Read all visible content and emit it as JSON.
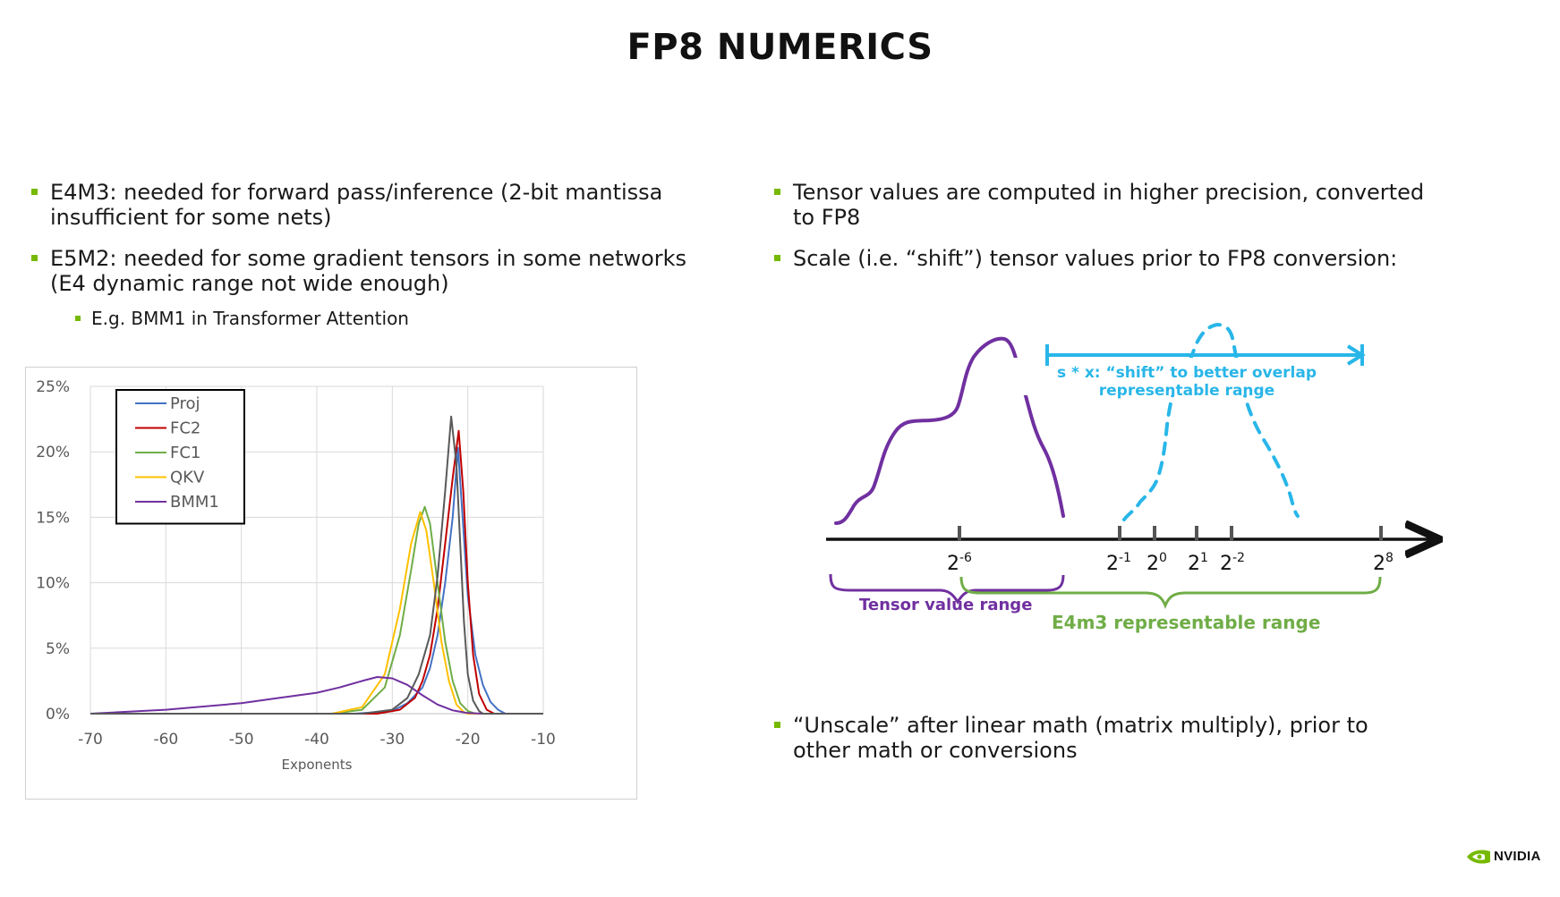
{
  "title": "FP8 NUMERICS",
  "left_bullets": [
    "E4M3: needed for forward pass/inference (2-bit mantissa insufficient for some nets)",
    "E5M2: needed for some gradient tensors in some networks (E4 dynamic range not wide enough)"
  ],
  "left_sub_bullet": "E.g. BMM1 in Transformer Attention",
  "right_bullets": [
    "Tensor values are computed in higher precision, converted to FP8",
    "Scale (i.e. “shift”) tensor values prior to FP8 conversion:"
  ],
  "right_bullet_bottom": "“Unscale” after linear math (matrix multiply), prior to other math or conversions",
  "chart_data": {
    "type": "line",
    "title": "",
    "xlabel": "Exponents",
    "ylabel": "",
    "xlim": [
      -70,
      -10
    ],
    "ylim": [
      0,
      25
    ],
    "x_ticks": [
      "-70",
      "-60",
      "-50",
      "-40",
      "-30",
      "-20",
      "-10"
    ],
    "y_ticks": [
      "0%",
      "5%",
      "10%",
      "15%",
      "20%",
      "25%"
    ],
    "grid": true,
    "legend_position": "top-left",
    "series": [
      {
        "name": "Proj",
        "color": "#4472c4",
        "points": [
          [
            -70,
            0
          ],
          [
            -35,
            0
          ],
          [
            -30,
            0.2
          ],
          [
            -28,
            0.8
          ],
          [
            -26,
            2
          ],
          [
            -25,
            3.5
          ],
          [
            -24,
            6
          ],
          [
            -23,
            10
          ],
          [
            -22,
            15
          ],
          [
            -21.3,
            20.3
          ],
          [
            -20.8,
            16
          ],
          [
            -20,
            9
          ],
          [
            -19,
            4.5
          ],
          [
            -18,
            2.2
          ],
          [
            -17,
            0.9
          ],
          [
            -16,
            0.3
          ],
          [
            -15,
            0
          ],
          [
            -10,
            0
          ]
        ]
      },
      {
        "name": "FC2",
        "color": "#c00000",
        "points": [
          [
            -70,
            0
          ],
          [
            -32,
            0
          ],
          [
            -29,
            0.3
          ],
          [
            -27,
            1.2
          ],
          [
            -26,
            2.5
          ],
          [
            -25,
            4.5
          ],
          [
            -24,
            8
          ],
          [
            -23,
            13
          ],
          [
            -22,
            18
          ],
          [
            -21.2,
            21.6
          ],
          [
            -20.6,
            17
          ],
          [
            -20,
            10
          ],
          [
            -19.3,
            4.5
          ],
          [
            -18.5,
            1.5
          ],
          [
            -17.5,
            0.3
          ],
          [
            -16.5,
            0
          ],
          [
            -10,
            0
          ]
        ]
      },
      {
        "name": "FC1",
        "color": "#70ad47",
        "points": [
          [
            -70,
            0
          ],
          [
            -38,
            0
          ],
          [
            -34,
            0.3
          ],
          [
            -31,
            2
          ],
          [
            -29,
            6
          ],
          [
            -27.5,
            11
          ],
          [
            -26.5,
            14.5
          ],
          [
            -25.7,
            15.8
          ],
          [
            -25,
            14.5
          ],
          [
            -24,
            10
          ],
          [
            -23,
            5.5
          ],
          [
            -22,
            2.5
          ],
          [
            -21,
            0.8
          ],
          [
            -20,
            0.2
          ],
          [
            -19,
            0
          ],
          [
            -10,
            0
          ]
        ]
      },
      {
        "name": "QKV",
        "color": "#ffc000",
        "points": [
          [
            -70,
            0
          ],
          [
            -38,
            0
          ],
          [
            -34,
            0.5
          ],
          [
            -31,
            3
          ],
          [
            -29,
            8
          ],
          [
            -27.5,
            13
          ],
          [
            -26.3,
            15.4
          ],
          [
            -25.5,
            14
          ],
          [
            -24.5,
            10
          ],
          [
            -23.5,
            5.5
          ],
          [
            -22.5,
            2.5
          ],
          [
            -21.5,
            0.7
          ],
          [
            -20.5,
            0.1
          ],
          [
            -20,
            0
          ],
          [
            -10,
            0
          ]
        ]
      },
      {
        "name": "BMM1",
        "color": "#7030a0",
        "points": [
          [
            -70,
            0
          ],
          [
            -60,
            0.3
          ],
          [
            -50,
            0.8
          ],
          [
            -45,
            1.2
          ],
          [
            -40,
            1.6
          ],
          [
            -37,
            2.0
          ],
          [
            -34,
            2.5
          ],
          [
            -32,
            2.8
          ],
          [
            -30,
            2.7
          ],
          [
            -28,
            2.2
          ],
          [
            -26,
            1.4
          ],
          [
            -24,
            0.7
          ],
          [
            -22,
            0.25
          ],
          [
            -20,
            0.05
          ],
          [
            -18,
            0
          ],
          [
            -10,
            0
          ]
        ]
      },
      {
        "name": "",
        "color": "#595959",
        "points": [
          [
            -70,
            0
          ],
          [
            -34,
            0
          ],
          [
            -30,
            0.3
          ],
          [
            -28,
            1.2
          ],
          [
            -26.5,
            3
          ],
          [
            -25,
            6
          ],
          [
            -24,
            10.5
          ],
          [
            -23,
            17
          ],
          [
            -22.2,
            22.7
          ],
          [
            -21.5,
            19
          ],
          [
            -21,
            13
          ],
          [
            -20.5,
            7
          ],
          [
            -20,
            3
          ],
          [
            -19.3,
            1
          ],
          [
            -18.5,
            0.2
          ],
          [
            -18,
            0
          ],
          [
            -10,
            0
          ]
        ]
      }
    ]
  },
  "diagram": {
    "tick_labels": [
      {
        "base": "2",
        "exp": "-6"
      },
      {
        "base": "2",
        "exp": "-1"
      },
      {
        "base": "2",
        "exp": "0"
      },
      {
        "base": "2",
        "exp": "1"
      },
      {
        "base": "2",
        "exp": "-2"
      },
      {
        "base": "2",
        "exp": "8"
      }
    ],
    "shift_label_line1": "s * x: “shift” to better overlap",
    "shift_label_line2": "representable range",
    "tensor_range_label": "Tensor value range",
    "e4m3_range_label": "E4m3 representable range",
    "colors": {
      "purple": "#7030a0",
      "cyan": "#29b6e8",
      "green": "#70ad47"
    }
  },
  "logo": {
    "text": "NVIDIA",
    "color": "#76b900"
  }
}
